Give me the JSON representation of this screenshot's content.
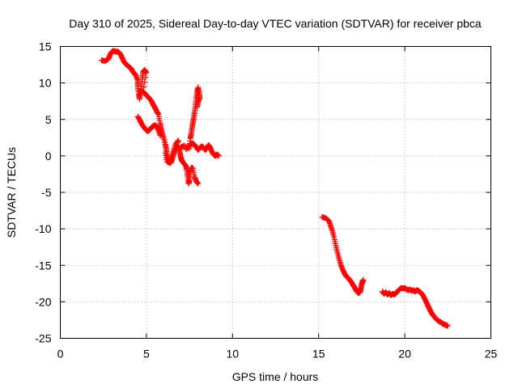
{
  "chart_data": {
    "type": "scatter",
    "title": "Day 310 of 2025, Sidereal Day-to-day VTEC variation (SDTVAR) for receiver pbca",
    "xlabel": "GPS time / hours",
    "ylabel": "SDTVAR / TECUs",
    "xlim": [
      0,
      25
    ],
    "ylim": [
      -25,
      15
    ],
    "x_ticks": [
      0,
      5,
      10,
      15,
      20,
      25
    ],
    "y_ticks": [
      15,
      10,
      5,
      0,
      -5,
      -10,
      -15,
      -20,
      -25
    ],
    "grid": true,
    "marker": "+",
    "marker_color": "#ff0000",
    "series": [
      {
        "name": "pbca",
        "segments": [
          [
            [
              2.4,
              13.1
            ],
            [
              2.6,
              13.0
            ],
            [
              2.8,
              13.3
            ],
            [
              2.9,
              13.9
            ],
            [
              3.0,
              14.3
            ],
            [
              3.1,
              14.4
            ],
            [
              3.2,
              14.3
            ],
            [
              3.3,
              14.3
            ],
            [
              3.4,
              14.2
            ],
            [
              3.5,
              13.9
            ],
            [
              3.6,
              13.4
            ],
            [
              3.7,
              12.9
            ],
            [
              3.8,
              12.6
            ],
            [
              3.9,
              12.4
            ],
            [
              4.0,
              12.2
            ],
            [
              4.1,
              12.0
            ],
            [
              4.2,
              11.6
            ],
            [
              4.3,
              11.3
            ],
            [
              4.4,
              11.0
            ],
            [
              4.5,
              10.3
            ],
            [
              4.5,
              9.5
            ],
            [
              4.55,
              8.5
            ],
            [
              4.6,
              7.8
            ],
            [
              4.65,
              8.6
            ],
            [
              4.7,
              9.2
            ],
            [
              4.75,
              10.5
            ],
            [
              4.8,
              11.5
            ],
            [
              4.9,
              11.8
            ],
            [
              5.0,
              11.4
            ],
            [
              4.8,
              8.8
            ],
            [
              4.9,
              8.6
            ],
            [
              5.0,
              8.3
            ],
            [
              5.1,
              8.1
            ],
            [
              5.2,
              7.8
            ],
            [
              5.3,
              7.5
            ],
            [
              5.4,
              7.0
            ],
            [
              5.5,
              6.6
            ],
            [
              5.6,
              6.1
            ],
            [
              5.7,
              5.7
            ],
            [
              5.8,
              4.5
            ],
            [
              5.85,
              3.8
            ],
            [
              5.9,
              3.2
            ],
            [
              6.0,
              2.5
            ],
            [
              6.1,
              1.6
            ],
            [
              6.15,
              1.0
            ],
            [
              6.2,
              0.2
            ],
            [
              6.25,
              -0.5
            ],
            [
              6.3,
              -0.9
            ],
            [
              6.4,
              -0.7
            ],
            [
              6.5,
              0.0
            ],
            [
              6.6,
              0.8
            ],
            [
              6.7,
              1.6
            ],
            [
              6.8,
              1.9
            ],
            [
              6.85,
              2.1
            ]
          ],
          [
            [
              4.5,
              5.4
            ],
            [
              4.6,
              5.0
            ],
            [
              4.7,
              4.5
            ],
            [
              4.8,
              4.1
            ],
            [
              4.9,
              3.8
            ],
            [
              5.0,
              3.5
            ],
            [
              5.1,
              3.4
            ],
            [
              5.2,
              3.6
            ],
            [
              5.3,
              3.9
            ],
            [
              5.4,
              4.1
            ],
            [
              5.5,
              4.2
            ],
            [
              5.6,
              4.0
            ],
            [
              5.7,
              3.5
            ],
            [
              5.8,
              2.8
            ]
          ],
          [
            [
              6.1,
              0.4
            ],
            [
              6.2,
              -0.8
            ],
            [
              6.4,
              -1.0
            ],
            [
              6.5,
              -0.5
            ],
            [
              6.6,
              0.3
            ],
            [
              6.7,
              1.0
            ],
            [
              6.8,
              1.4
            ],
            [
              6.9,
              1.1
            ],
            [
              6.95,
              0.4
            ],
            [
              7.0,
              -0.2
            ],
            [
              7.05,
              -0.6
            ],
            [
              7.1,
              -0.8
            ],
            [
              7.2,
              -1.1
            ],
            [
              7.3,
              -1.4
            ],
            [
              7.35,
              -2.0
            ],
            [
              7.4,
              -2.9
            ],
            [
              7.45,
              -3.8
            ],
            [
              7.5,
              -3.4
            ],
            [
              7.55,
              -2.3
            ],
            [
              7.6,
              -1.6
            ],
            [
              7.7,
              -1.7
            ],
            [
              7.8,
              -2.9
            ],
            [
              7.9,
              -3.5
            ],
            [
              8.0,
              -3.8
            ]
          ],
          [
            [
              7.3,
              0.9
            ],
            [
              7.4,
              1.2
            ],
            [
              7.5,
              1.4
            ],
            [
              7.6,
              1.6
            ],
            [
              7.7,
              1.7
            ],
            [
              7.8,
              1.5
            ],
            [
              7.9,
              1.2
            ],
            [
              8.0,
              0.8
            ],
            [
              8.1,
              1.1
            ],
            [
              8.2,
              1.3
            ],
            [
              8.3,
              1.2
            ],
            [
              8.4,
              0.8
            ],
            [
              8.5,
              1.0
            ],
            [
              8.6,
              1.5
            ],
            [
              8.7,
              1.2
            ],
            [
              8.8,
              0.6
            ],
            [
              8.9,
              0.2
            ],
            [
              9.0,
              0.0
            ],
            [
              9.1,
              0.2
            ],
            [
              9.2,
              0.0
            ]
          ],
          [
            [
              7.0,
              1.2
            ],
            [
              7.2,
              1.4
            ],
            [
              7.5,
              1.0
            ],
            [
              7.55,
              2.4
            ],
            [
              7.6,
              3.0
            ],
            [
              7.65,
              3.8
            ],
            [
              7.7,
              4.5
            ],
            [
              7.75,
              5.2
            ],
            [
              7.8,
              6.0
            ],
            [
              7.85,
              7.0
            ],
            [
              7.9,
              8.0
            ],
            [
              7.95,
              8.8
            ],
            [
              8.0,
              9.4
            ],
            [
              8.05,
              8.7
            ],
            [
              8.1,
              8.0
            ],
            [
              8.0,
              7.4
            ],
            [
              7.95,
              6.7
            ]
          ],
          [
            [
              15.2,
              -8.4
            ],
            [
              15.4,
              -8.5
            ],
            [
              15.6,
              -8.9
            ],
            [
              15.7,
              -9.6
            ],
            [
              15.8,
              -10.3
            ],
            [
              15.9,
              -11.2
            ],
            [
              16.0,
              -12.3
            ],
            [
              16.1,
              -13.3
            ],
            [
              16.2,
              -14.2
            ],
            [
              16.3,
              -15.0
            ],
            [
              16.4,
              -15.6
            ],
            [
              16.5,
              -16.1
            ],
            [
              16.6,
              -16.5
            ],
            [
              16.7,
              -16.7
            ],
            [
              16.8,
              -17.0
            ],
            [
              16.9,
              -17.3
            ],
            [
              17.0,
              -17.7
            ],
            [
              17.1,
              -18.1
            ],
            [
              17.2,
              -18.5
            ],
            [
              17.3,
              -18.8
            ],
            [
              17.4,
              -18.7
            ],
            [
              17.45,
              -18.2
            ],
            [
              17.5,
              -17.6
            ],
            [
              17.55,
              -17.2
            ],
            [
              17.6,
              -17.0
            ]
          ],
          [
            [
              18.7,
              -18.6
            ],
            [
              18.8,
              -18.9
            ],
            [
              18.9,
              -18.7
            ],
            [
              19.0,
              -19.0
            ],
            [
              19.1,
              -18.8
            ],
            [
              19.2,
              -19.1
            ],
            [
              19.3,
              -18.9
            ],
            [
              19.4,
              -19.0
            ],
            [
              19.5,
              -18.8
            ],
            [
              19.6,
              -18.5
            ],
            [
              19.7,
              -18.3
            ],
            [
              19.8,
              -18.1
            ],
            [
              19.9,
              -18.2
            ],
            [
              20.0,
              -18.1
            ],
            [
              20.1,
              -18.3
            ],
            [
              20.2,
              -18.4
            ],
            [
              20.3,
              -18.3
            ],
            [
              20.4,
              -18.5
            ],
            [
              20.5,
              -18.4
            ],
            [
              20.6,
              -18.6
            ],
            [
              20.7,
              -18.4
            ],
            [
              20.8,
              -18.5
            ],
            [
              20.9,
              -18.7
            ],
            [
              21.0,
              -18.9
            ],
            [
              21.1,
              -19.3
            ],
            [
              21.2,
              -19.8
            ],
            [
              21.3,
              -20.3
            ],
            [
              21.4,
              -20.8
            ],
            [
              21.5,
              -21.3
            ],
            [
              21.6,
              -21.7
            ],
            [
              21.7,
              -22.0
            ],
            [
              21.8,
              -22.3
            ],
            [
              21.9,
              -22.5
            ],
            [
              22.0,
              -22.7
            ],
            [
              22.1,
              -22.8
            ],
            [
              22.2,
              -23.0
            ],
            [
              22.3,
              -23.1
            ],
            [
              22.4,
              -23.2
            ],
            [
              22.5,
              -23.3
            ]
          ]
        ]
      }
    ]
  }
}
